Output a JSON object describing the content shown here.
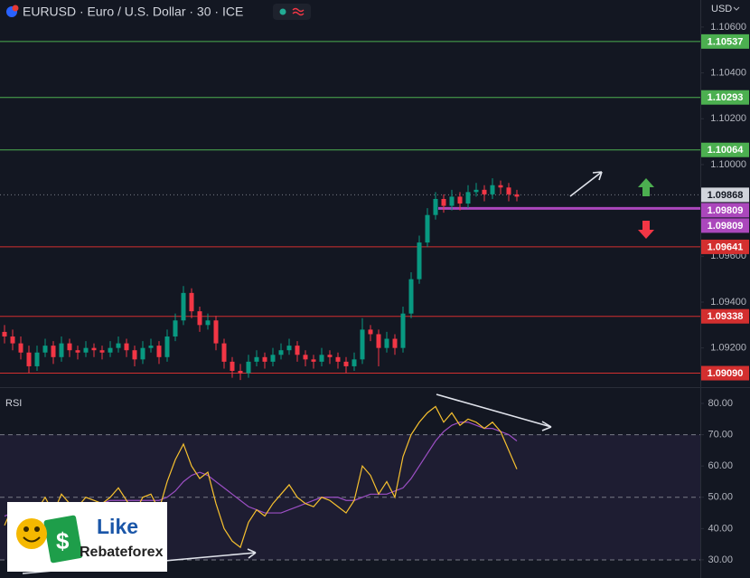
{
  "chart_data": {
    "type": "candlestick",
    "title": "EURUSD · Euro / U.S. Dollar · 30 · ICE",
    "currency": "USD",
    "up_color": "#089981",
    "down_color": "#f23645",
    "ylim": [
      1.09029,
      1.10718
    ],
    "yticks": [
      {
        "value": 1.106,
        "label": "1.10600"
      },
      {
        "value": 1.104,
        "label": "1.10400"
      },
      {
        "value": 1.102,
        "label": "1.10200"
      },
      {
        "value": 1.1,
        "label": "1.10000"
      },
      {
        "value": 1.096,
        "label": "1.09600"
      },
      {
        "value": 1.094,
        "label": "1.09400"
      },
      {
        "value": 1.092,
        "label": "1.09200"
      }
    ],
    "levels": [
      {
        "value": 1.10537,
        "label": "1.10537",
        "color": "#4caf50",
        "style": "solid"
      },
      {
        "value": 1.10293,
        "label": "1.10293",
        "color": "#4caf50",
        "style": "solid"
      },
      {
        "value": 1.10064,
        "label": "1.10064",
        "color": "#4caf50",
        "style": "solid"
      },
      {
        "value": 1.09868,
        "label": "1.09868",
        "color": "#787b86",
        "style": "dotted"
      },
      {
        "value": 1.09809,
        "label": "1.09809",
        "color": "#ab47bc",
        "style": "thick"
      },
      {
        "value": 1.09809,
        "label": "1.09809",
        "color": "#ab47bc",
        "style": "none"
      },
      {
        "value": 1.09641,
        "label": "1.09641",
        "color": "#d32f2f",
        "style": "solid"
      },
      {
        "value": 1.09338,
        "label": "1.09338",
        "color": "#d32f2f",
        "style": "solid"
      },
      {
        "value": 1.0909,
        "label": "1.09090",
        "color": "#d32f2f",
        "style": "solid"
      }
    ],
    "candles": [
      [
        1.0927,
        1.093,
        1.0922,
        1.0925
      ],
      [
        1.0925,
        1.0928,
        1.0919,
        1.0922
      ],
      [
        1.0922,
        1.0925,
        1.0915,
        1.0918
      ],
      [
        1.0918,
        1.0921,
        1.0909,
        1.0912
      ],
      [
        1.0912,
        1.0921,
        1.091,
        1.0918
      ],
      [
        1.0918,
        1.0924,
        1.0916,
        1.0921
      ],
      [
        1.0921,
        1.0923,
        1.0913,
        1.0916
      ],
      [
        1.0916,
        1.0925,
        1.0914,
        1.0922
      ],
      [
        1.0922,
        1.0924,
        1.0916,
        1.0919
      ],
      [
        1.0919,
        1.0921,
        1.0915,
        1.0918
      ],
      [
        1.0918,
        1.0923,
        1.0916,
        1.092
      ],
      [
        1.092,
        1.0922,
        1.0916,
        1.0919
      ],
      [
        1.0919,
        1.0921,
        1.0915,
        1.0918
      ],
      [
        1.0918,
        1.0923,
        1.0916,
        1.092
      ],
      [
        1.092,
        1.0925,
        1.0918,
        1.0922
      ],
      [
        1.0922,
        1.0924,
        1.0916,
        1.0919
      ],
      [
        1.0919,
        1.0921,
        1.0912,
        1.0915
      ],
      [
        1.0915,
        1.0923,
        1.0913,
        1.092
      ],
      [
        1.092,
        1.0924,
        1.0918,
        1.0921
      ],
      [
        1.0921,
        1.0923,
        1.0913,
        1.0916
      ],
      [
        1.0916,
        1.0928,
        1.0914,
        1.0925
      ],
      [
        1.0925,
        1.0935,
        1.0923,
        1.0932
      ],
      [
        1.0932,
        1.0947,
        1.093,
        1.0944
      ],
      [
        1.0944,
        1.0946,
        1.0933,
        1.0936
      ],
      [
        1.0936,
        1.0938,
        1.0927,
        1.093
      ],
      [
        1.093,
        1.0935,
        1.0928,
        1.0932
      ],
      [
        1.0932,
        1.0934,
        1.0919,
        1.0922
      ],
      [
        1.0922,
        1.0924,
        1.0911,
        1.0914
      ],
      [
        1.0914,
        1.0916,
        1.0907,
        1.091
      ],
      [
        1.091,
        1.0913,
        1.0906,
        1.0909
      ],
      [
        1.0909,
        1.0917,
        1.0907,
        1.0914
      ],
      [
        1.0914,
        1.0919,
        1.0912,
        1.0916
      ],
      [
        1.0916,
        1.0918,
        1.0911,
        1.0914
      ],
      [
        1.0914,
        1.092,
        1.0912,
        1.0917
      ],
      [
        1.0917,
        1.0922,
        1.0915,
        1.0919
      ],
      [
        1.0919,
        1.0924,
        1.0917,
        1.0921
      ],
      [
        1.0921,
        1.0923,
        1.0914,
        1.0917
      ],
      [
        1.0917,
        1.0919,
        1.0912,
        1.0915
      ],
      [
        1.0915,
        1.0917,
        1.0911,
        1.0914
      ],
      [
        1.0914,
        1.092,
        1.0912,
        1.0917
      ],
      [
        1.0917,
        1.0919,
        1.0913,
        1.0916
      ],
      [
        1.0916,
        1.0918,
        1.0911,
        1.0914
      ],
      [
        1.0914,
        1.0916,
        1.0909,
        1.0912
      ],
      [
        1.0912,
        1.0918,
        1.091,
        1.0915
      ],
      [
        1.0915,
        1.0933,
        1.0913,
        1.0928
      ],
      [
        1.0928,
        1.093,
        1.0923,
        1.0926
      ],
      [
        1.0926,
        1.0928,
        1.0912,
        1.092
      ],
      [
        1.092,
        1.0927,
        1.0918,
        1.0924
      ],
      [
        1.0924,
        1.0926,
        1.0917,
        1.092
      ],
      [
        1.092,
        1.0938,
        1.0918,
        1.0935
      ],
      [
        1.0935,
        1.0953,
        1.0933,
        1.095
      ],
      [
        1.095,
        1.0969,
        1.0948,
        1.0966
      ],
      [
        1.0966,
        1.0981,
        1.0964,
        1.0978
      ],
      [
        1.0978,
        1.0988,
        1.0976,
        1.0985
      ],
      [
        1.0985,
        1.0987,
        1.0979,
        1.0982
      ],
      [
        1.0982,
        1.0989,
        1.098,
        1.0986
      ],
      [
        1.0986,
        1.0988,
        1.098,
        1.0983
      ],
      [
        1.0983,
        1.0991,
        1.0981,
        1.0988
      ],
      [
        1.0988,
        1.0992,
        1.0986,
        1.0989
      ],
      [
        1.0989,
        1.0991,
        1.0984,
        1.0987
      ],
      [
        1.0987,
        1.0994,
        1.0985,
        1.0991
      ],
      [
        1.0991,
        1.0993,
        1.0987,
        1.099
      ],
      [
        1.099,
        1.0992,
        1.0984,
        1.0987
      ],
      [
        1.0987,
        1.0989,
        1.0984,
        1.0986
      ]
    ],
    "rsi": {
      "title": "RSI",
      "ylim": [
        24.2,
        85.2
      ],
      "yticks": [
        {
          "value": 80,
          "label": "80.00"
        },
        {
          "value": 70,
          "label": "70.00"
        },
        {
          "value": 60,
          "label": "60.00"
        },
        {
          "value": 50,
          "label": "50.00"
        },
        {
          "value": 40,
          "label": "40.00"
        },
        {
          "value": 30,
          "label": "30.00"
        }
      ],
      "band": [
        30,
        70
      ],
      "dashed": [
        70,
        50,
        30
      ],
      "series": [
        {
          "color": "#f7c12f",
          "values": [
            41,
            47,
            45,
            38,
            46,
            50,
            45,
            51,
            48,
            47,
            50,
            49,
            48,
            50,
            53,
            49,
            45,
            50,
            51,
            46,
            55,
            62,
            67,
            60,
            56,
            58,
            48,
            40,
            36,
            34,
            42,
            46,
            44,
            48,
            51,
            54,
            50,
            48,
            47,
            50,
            49,
            47,
            45,
            49,
            60,
            57,
            51,
            55,
            50,
            63,
            70,
            74,
            77,
            79,
            74,
            77,
            73,
            75,
            74,
            72,
            74,
            71,
            65,
            59
          ]
        },
        {
          "color": "#9c4fc4",
          "values": [
            44,
            45,
            45,
            45,
            46,
            47,
            47,
            47,
            48,
            48,
            48,
            48,
            48,
            49,
            49,
            49,
            49,
            49,
            49,
            49,
            50,
            52,
            55,
            57,
            58,
            57,
            55,
            53,
            51,
            49,
            47,
            46,
            45,
            45,
            45,
            46,
            47,
            48,
            49,
            50,
            50,
            50,
            49,
            49,
            50,
            51,
            51,
            51,
            52,
            53,
            56,
            60,
            64,
            68,
            71,
            73,
            74,
            74,
            73,
            72,
            72,
            71,
            70,
            68
          ]
        }
      ]
    },
    "logo": {
      "line1": "Like",
      "line2": "Rebateforex"
    }
  }
}
